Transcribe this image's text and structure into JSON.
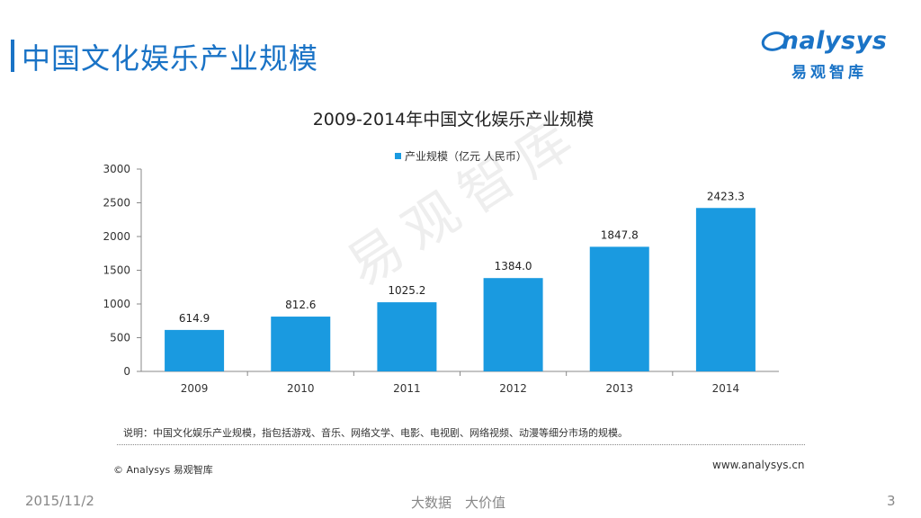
{
  "page": {
    "title": "中国文化娱乐产业规模",
    "note": "说明：中国文化娱乐产业规模，指包括游戏、音乐、网络文学、电影、电视剧、网络视频、动漫等细分市场的规模。",
    "copyright": "© Analysys 易观智库",
    "website": "www.analysys.cn",
    "footer_date": "2015/11/2",
    "footer_center": "大数据　大价值",
    "page_number": "3",
    "watermark": "易观智库"
  },
  "logo": {
    "brand": "nalysys",
    "brand_initial": "a",
    "cn_name": "易观智库"
  },
  "colors": {
    "accent": "#1a73c6",
    "bar": "#1a9ae0"
  },
  "chart_data": {
    "type": "bar",
    "title": "2009-2014年中国文化娱乐产业规模",
    "categories": [
      "2009",
      "2010",
      "2011",
      "2012",
      "2013",
      "2014"
    ],
    "series": [
      {
        "name": "产业规模（亿元 人民币）",
        "values": [
          614.9,
          812.6,
          1025.2,
          1384.0,
          1847.8,
          2423.3
        ]
      }
    ],
    "value_labels": [
      "614.9",
      "812.6",
      "1025.2",
      "1384.0",
      "1847.8",
      "2423.3"
    ],
    "yticks": [
      "0",
      "500",
      "1000",
      "1500",
      "2000",
      "2500",
      "3000"
    ],
    "ylim": [
      0,
      3000
    ],
    "xlabel": "",
    "ylabel": "",
    "legend_position": "top-center",
    "grid": false
  }
}
